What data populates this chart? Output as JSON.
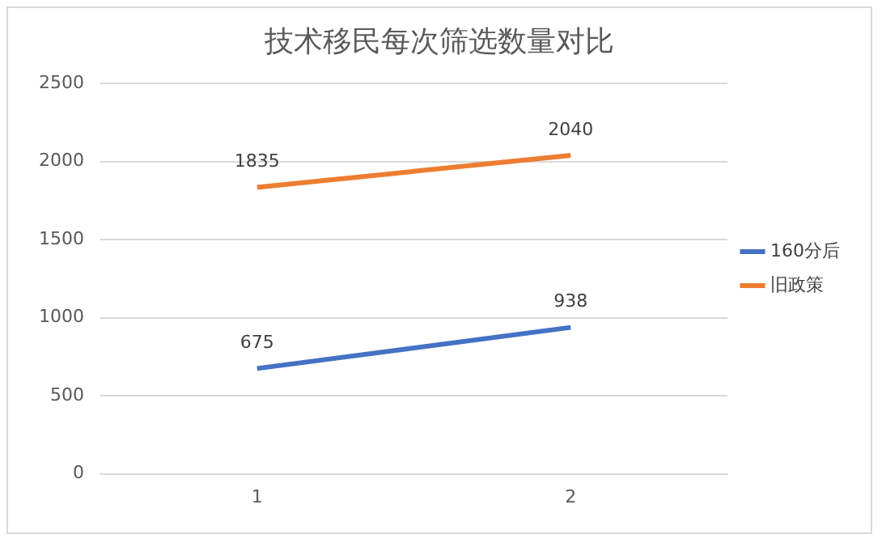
{
  "chart_data": {
    "type": "line",
    "title": "技术移民每次筛选数量对比",
    "categories": [
      "1",
      "2"
    ],
    "series": [
      {
        "name": "160分后",
        "color": "#4472c4",
        "values": [
          675,
          938
        ]
      },
      {
        "name": "旧政策",
        "color": "#ed7d31",
        "values": [
          1835,
          2040
        ]
      }
    ],
    "ylim": [
      0,
      2500
    ],
    "yticks": [
      0,
      500,
      1000,
      1500,
      2000,
      2500
    ],
    "grid": "y",
    "legend": "right",
    "marker": "none",
    "line_style": "solid",
    "data_labels": true
  }
}
